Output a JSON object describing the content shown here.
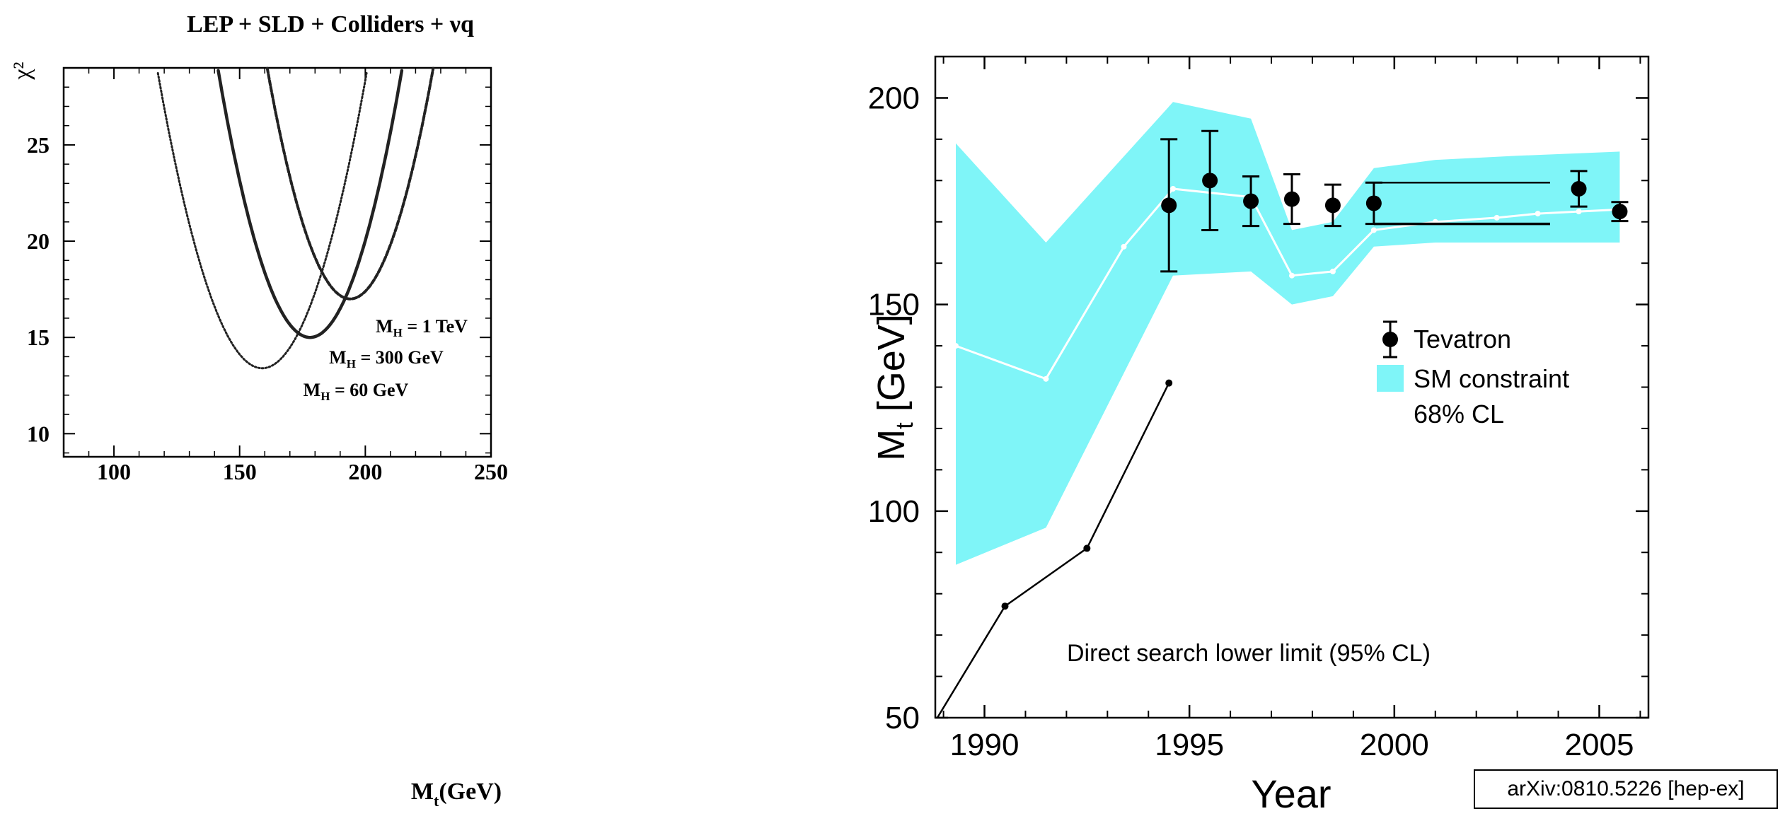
{
  "chart_data": [
    {
      "type": "line",
      "title": "LEP + SLD + Colliders + νq",
      "xlabel": "M_t(GeV)",
      "ylabel": "χ²",
      "xlim": [
        80,
        250
      ],
      "ylim": [
        8.8,
        29
      ],
      "xticks": [
        100,
        150,
        200,
        250
      ],
      "yticks": [
        10,
        15,
        20,
        25
      ],
      "grid": false,
      "series": [
        {
          "name": "M_H = 60 GeV",
          "style": "dotted",
          "min_x": 159,
          "min_y": 13.4,
          "curvature": 0.0089
        },
        {
          "name": "M_H = 300 GeV",
          "style": "solid",
          "min_x": 178,
          "min_y": 15.0,
          "curvature": 0.0104
        },
        {
          "name": "M_H = 1 TeV",
          "style": "dashed",
          "min_x": 194,
          "min_y": 17.0,
          "curvature": 0.011
        }
      ],
      "annotations": [
        {
          "text": "M_H = 1 TeV",
          "sub": "H",
          "base": "M",
          "rest": " = 1 TeV"
        },
        {
          "text": "M_H = 300 GeV",
          "sub": "H",
          "base": "M",
          "rest": " = 300 GeV"
        },
        {
          "text": "M_H = 60 GeV",
          "sub": "H",
          "base": "M",
          "rest": " = 60 GeV"
        }
      ]
    },
    {
      "type": "scatter",
      "xlabel": "Year",
      "ylabel": "M_t  [GeV]",
      "xlim": [
        1988.8,
        2006.2
      ],
      "ylim": [
        50,
        210
      ],
      "xticks": [
        1990,
        1995,
        2000,
        2005
      ],
      "yticks": [
        50,
        100,
        150,
        200
      ],
      "grid": false,
      "legend_position": "right",
      "legend": [
        "Tevatron",
        "SM constraint",
        "68% CL"
      ],
      "tevatron": [
        {
          "x": 1994.5,
          "y": 174,
          "err": 16
        },
        {
          "x": 1995.5,
          "y": 180,
          "err": 12
        },
        {
          "x": 1996.5,
          "y": 175,
          "err": 6
        },
        {
          "x": 1997.5,
          "y": 175.5,
          "err": 6
        },
        {
          "x": 1998.5,
          "y": 174,
          "err": 5
        },
        {
          "x": 1999.5,
          "y": 174.5,
          "err": 5
        },
        {
          "x": 2004.5,
          "y": 178,
          "err": 4.3
        },
        {
          "x": 2005.5,
          "y": 172.5,
          "err": 2.3
        }
      ],
      "world_average_band": {
        "x_start": 1999.5,
        "x_end": 2003.8,
        "low": 169.5,
        "high": 179.5
      },
      "sm_constraint_band": {
        "x": [
          1989.3,
          1991.5,
          1994.6,
          1996.5,
          1997.5,
          1998.5,
          1999.5,
          2001,
          2003,
          2005.5
        ],
        "low": [
          87,
          96,
          157,
          158,
          150,
          152,
          164,
          165,
          165,
          165
        ],
        "high": [
          189,
          165,
          199,
          195,
          168,
          170,
          183,
          185,
          186,
          187
        ],
        "central": [
          140,
          132,
          178,
          176,
          157,
          158,
          168,
          170,
          172,
          173
        ],
        "central_x": [
          1989.3,
          1991.5,
          1993.4,
          1994.6,
          1996.5,
          1997.5,
          1998.5,
          1999.5,
          2001,
          2002.5,
          2003.5,
          2004.5,
          2005.5
        ],
        "central_y": [
          140,
          132,
          164,
          178,
          176,
          157,
          158,
          168,
          170,
          171,
          172,
          172.5,
          173
        ]
      },
      "direct_search_limit": {
        "label": "Direct search lower limit (95% CL)",
        "x": [
          1988.85,
          1990.5,
          1992.5,
          1994.5
        ],
        "y": [
          50,
          77,
          91,
          131
        ]
      }
    }
  ],
  "footer": {
    "arxiv_label": "arXiv:0810.5226 [hep-ex]"
  },
  "colors": {
    "band": "#7ff5f8",
    "curve": "#222222",
    "axis": "#000000"
  }
}
